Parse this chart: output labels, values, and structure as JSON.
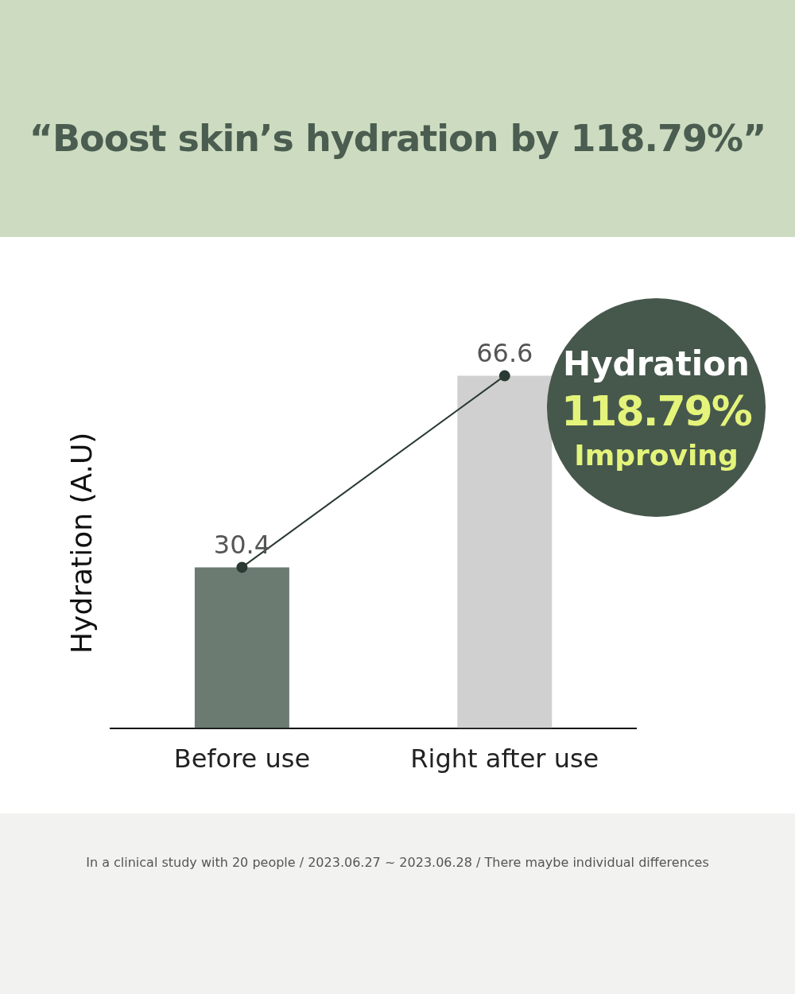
{
  "chart_data": {
    "type": "bar",
    "title": "“Boost skin’s hydration by 118.79%”",
    "ylabel": "Hydration (A.U)",
    "categories": [
      "Before use",
      "Right after use"
    ],
    "series": [
      {
        "colors": [
          "#6b7b72",
          "#d0d0d0"
        ],
        "values": [
          30.4,
          66.6
        ],
        "value_labels": [
          "30.4",
          "66.6"
        ]
      },
      {
        "type": "line",
        "color": "#2b3a33",
        "values": [
          30.4,
          66.6
        ]
      }
    ],
    "legend": false,
    "grid": false,
    "marker": "circle",
    "annotations": [
      "Hydration",
      "118.79%",
      "Improving",
      "In a clinical study with 20 people / 2023.06.27 ~ 2023.06.28 / There maybe individual differences"
    ]
  }
}
